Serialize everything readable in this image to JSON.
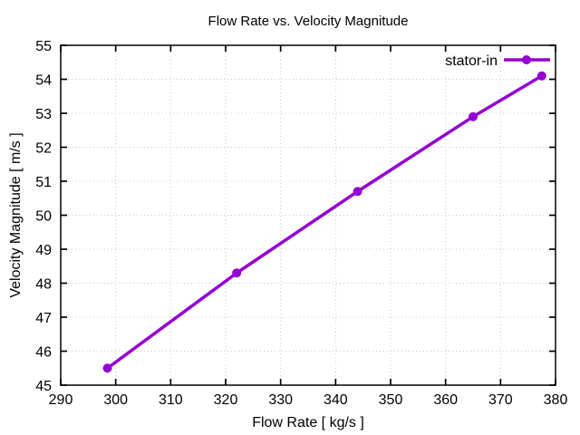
{
  "chart_data": {
    "type": "line",
    "title": "Flow Rate vs. Velocity Magnitude",
    "xlabel": "Flow Rate [ kg/s ]",
    "ylabel": "Velocity Magnitude [ m/s ]",
    "xlim": [
      290,
      380
    ],
    "ylim": [
      45,
      55
    ],
    "xtick_step": 10,
    "ytick_step": 1,
    "grid": true,
    "grid_style": "dotted",
    "legend_position": "top-right-inside",
    "series": [
      {
        "name": "stator-in",
        "color": "#9400D3",
        "marker": "circle",
        "marker_size": 5,
        "line_width": 3.5,
        "x": [
          298.5,
          322,
          344,
          365,
          377.5
        ],
        "y": [
          45.5,
          48.3,
          50.7,
          52.9,
          54.1
        ]
      }
    ]
  },
  "colors": {
    "background": "#ffffff",
    "grid": "#c8c8c8",
    "axis": "#000000",
    "text": "#000000",
    "series_purple": "#9400D3"
  }
}
